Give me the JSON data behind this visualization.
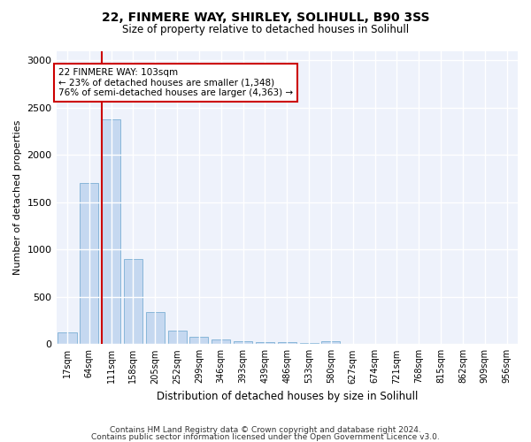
{
  "title1": "22, FINMERE WAY, SHIRLEY, SOLIHULL, B90 3SS",
  "title2": "Size of property relative to detached houses in Solihull",
  "xlabel": "Distribution of detached houses by size in Solihull",
  "ylabel": "Number of detached properties",
  "categories": [
    "17sqm",
    "64sqm",
    "111sqm",
    "158sqm",
    "205sqm",
    "252sqm",
    "299sqm",
    "346sqm",
    "393sqm",
    "439sqm",
    "486sqm",
    "533sqm",
    "580sqm",
    "627sqm",
    "674sqm",
    "721sqm",
    "768sqm",
    "815sqm",
    "862sqm",
    "909sqm",
    "956sqm"
  ],
  "values": [
    120,
    1700,
    2380,
    900,
    340,
    140,
    75,
    45,
    35,
    25,
    20,
    15,
    30,
    0,
    0,
    0,
    0,
    0,
    0,
    0,
    0
  ],
  "bar_color": "#c5d8f0",
  "bar_edge_color": "#7bafd4",
  "highlight_line_color": "#cc0000",
  "annotation_text": "22 FINMERE WAY: 103sqm\n← 23% of detached houses are smaller (1,348)\n76% of semi-detached houses are larger (4,363) →",
  "annotation_box_color": "white",
  "annotation_box_edge_color": "#cc0000",
  "ylim": [
    0,
    3100
  ],
  "yticks": [
    0,
    500,
    1000,
    1500,
    2000,
    2500,
    3000
  ],
  "bg_color": "#eef2fb",
  "footer1": "Contains HM Land Registry data © Crown copyright and database right 2024.",
  "footer2": "Contains public sector information licensed under the Open Government Licence v3.0."
}
